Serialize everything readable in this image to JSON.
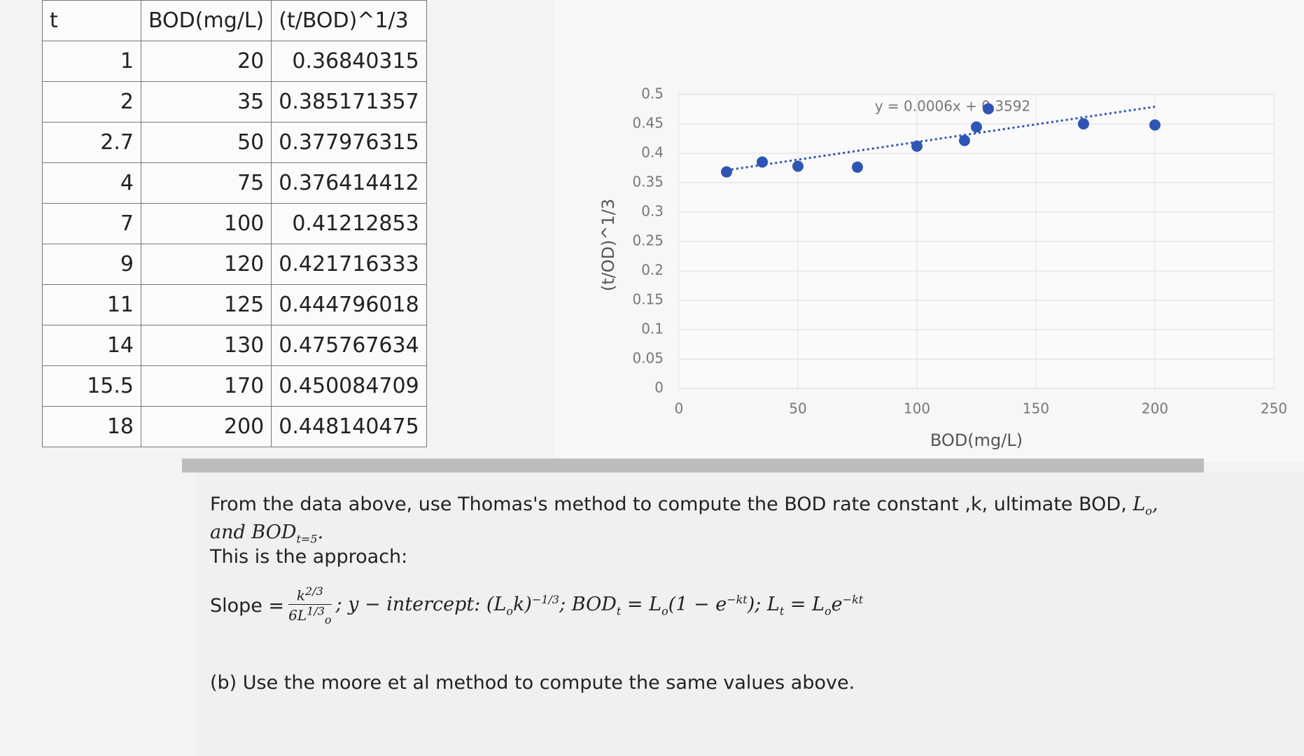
{
  "table": {
    "header": [
      "t",
      "BOD(mg/L)",
      "(t/BOD)^1/3"
    ],
    "rows": [
      [
        "1",
        "20",
        "0.36840315"
      ],
      [
        "2",
        "35",
        "0.385171357"
      ],
      [
        "2.7",
        "50",
        "0.377976315"
      ],
      [
        "4",
        "75",
        "0.376414412"
      ],
      [
        "7",
        "100",
        "0.41212853"
      ],
      [
        "9",
        "120",
        "0.421716333"
      ],
      [
        "11",
        "125",
        "0.444796018"
      ],
      [
        "14",
        "130",
        "0.475767634"
      ],
      [
        "15.5",
        "170",
        "0.450084709"
      ],
      [
        "18",
        "200",
        "0.448140475"
      ]
    ]
  },
  "chart_data": {
    "type": "scatter",
    "x_label": "BOD(mg/L)",
    "y_label": "(t/OD)^1/3",
    "x": [
      20,
      35,
      50,
      75,
      100,
      120,
      125,
      130,
      170,
      200
    ],
    "series": [
      {
        "name": "(t/BOD)^1/3",
        "color": "#2f55b4",
        "values": [
          0.36840315,
          0.385171357,
          0.377976315,
          0.376414412,
          0.41212853,
          0.421716333,
          0.444796018,
          0.475767634,
          0.450084709,
          0.448140475
        ]
      }
    ],
    "trendline": {
      "label": "y = 0.0006x + 0.3592",
      "slope": 0.0006,
      "intercept": 0.3592
    },
    "xlim": [
      0,
      250
    ],
    "xticks": [
      0,
      50,
      100,
      150,
      200,
      250
    ],
    "ylim": [
      0,
      0.5
    ],
    "yticks": [
      0,
      0.05,
      0.1,
      0.15,
      0.2,
      0.25,
      0.3,
      0.35,
      0.4,
      0.45,
      0.5
    ],
    "grid": true
  },
  "text": {
    "q1": "From the data above, use Thomas's method to compute the BOD rate constant ,k, ultimate BOD, ",
    "q_L": "L",
    "q_L_sub": "o",
    "q_comma": ",",
    "q2": "and BOD",
    "q2_sub": "t=5",
    "q2_end": ".",
    "approach": "This is the approach:",
    "slope": "Slope =",
    "num": "k",
    "num_sup": "2/3",
    "den": "6L",
    "den_sup": "1/3",
    "den_sub": "o",
    "f1": "; y − intercept: (L",
    "f1_sub": "o",
    "f2": "k)",
    "f2_sup": "−1/3",
    "f3": "; BOD",
    "f3_sub": "t",
    "f4": " = L",
    "f4_sub": "o",
    "f5": "(1 − e",
    "f5_sup": "−kt",
    "f6": "); L",
    "f6_sub": "t",
    "f7": " = L",
    "f7_sub": "o",
    "f8": "e",
    "f8_sup": "−kt",
    "b": "(b) Use the moore et al method to compute the same values above."
  }
}
